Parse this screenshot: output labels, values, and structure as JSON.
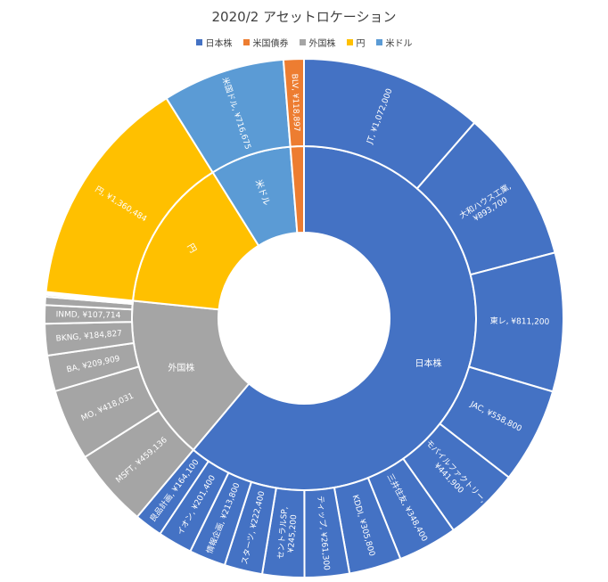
{
  "chart_data": {
    "type": "sunburst",
    "title": "2020/2 アセットロケーション",
    "legend_position": "top",
    "series": [
      {
        "name": "日本株",
        "color": "#4472C4",
        "children": [
          {
            "label": "JT, ¥1,072,000",
            "value": 1072000
          },
          {
            "label": "大和ハウス工業, ¥893,700",
            "value": 893700
          },
          {
            "label": "東レ, ¥811,200",
            "value": 811200
          },
          {
            "label": "JAC, ¥558,800",
            "value": 558800
          },
          {
            "label": "モバイルファクトリー, ¥441,900",
            "value": 441900
          },
          {
            "label": "三井住友, ¥348,400",
            "value": 348400
          },
          {
            "label": "KDDI, ¥305,800",
            "value": 305800
          },
          {
            "label": "ティップ, ¥261,300",
            "value": 261300
          },
          {
            "label": "セントラルSP, ¥245,200",
            "value": 245200
          },
          {
            "label": "スターツ, ¥222,400",
            "value": 222400
          },
          {
            "label": "情報企画, ¥213,800",
            "value": 213800
          },
          {
            "label": "イオン, ¥201,400",
            "value": 201400
          },
          {
            "label": "良品計画, ¥164,100",
            "value": 164100
          }
        ]
      },
      {
        "name": "外国株",
        "color": "#A5A5A5",
        "children": [
          {
            "label": "MSFT, ¥459,136",
            "value": 459136
          },
          {
            "label": "MO, ¥418,031",
            "value": 418031
          },
          {
            "label": "BA, ¥209,909",
            "value": 209909
          },
          {
            "label": "BKNG, ¥184,827",
            "value": 184827
          },
          {
            "label": "INMD, ¥107,714",
            "value": 107714
          },
          {
            "label": "",
            "value": 48000
          },
          {
            "label": "",
            "value": 12000
          },
          {
            "label": "",
            "value": 9000
          },
          {
            "label": "",
            "value": 7000
          }
        ]
      },
      {
        "name": "円",
        "color": "#FFC000",
        "children": [
          {
            "label": "円, ¥1,360,484",
            "value": 1360484
          }
        ]
      },
      {
        "name": "米ドル",
        "color": "#5B9BD5",
        "children": [
          {
            "label": "米国ドル, ¥716,675",
            "value": 716675
          }
        ]
      },
      {
        "name": "米国債券",
        "color": "#ED7D31",
        "children": [
          {
            "label": "BLV, ¥118,897",
            "value": 118897
          }
        ]
      }
    ],
    "legend_order": [
      "日本株",
      "米国債券",
      "外国株",
      "円",
      "米ドル"
    ],
    "inner_labels": [
      "日本株",
      "外国株",
      "円",
      "米ドル",
      ""
    ]
  }
}
